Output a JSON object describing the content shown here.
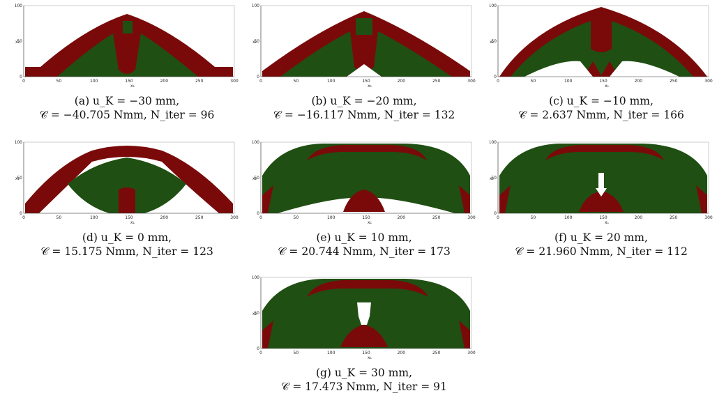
{
  "figure": {
    "axes": {
      "x_label": "x₁",
      "y_label": "x₂",
      "x_ticks": [
        "0",
        "50",
        "100",
        "150",
        "200",
        "250",
        "300"
      ],
      "y_ticks": [
        "0",
        "50",
        "100"
      ]
    },
    "colors": {
      "solid_material": "#7a0a0a",
      "soft_material": "#1f4f12",
      "void": "#ffffff"
    },
    "panels": [
      {
        "id": "a",
        "caption_line1": "(a) u_K = −30 mm,",
        "caption_line2": "𝒞 = −40.705 Nmm, N_iter = 96"
      },
      {
        "id": "b",
        "caption_line1": "(b)  u_K = −20 mm,",
        "caption_line2": "𝒞 = −16.117 Nmm, N_iter = 132"
      },
      {
        "id": "c",
        "caption_line1": "(c)  u_K = −10 mm,",
        "caption_line2": "𝒞 = 2.637 Nmm, N_iter = 166"
      },
      {
        "id": "d",
        "caption_line1": "(d)  u_K = 0 mm,",
        "caption_line2": "𝒞 = 15.175 Nmm, N_iter = 123"
      },
      {
        "id": "e",
        "caption_line1": "(e)  u_K = 10 mm,",
        "caption_line2": "𝒞 = 20.744 Nmm, N_iter = 173"
      },
      {
        "id": "f",
        "caption_line1": "(f)  u_K = 20 mm,",
        "caption_line2": "𝒞 = 21.960 Nmm, N_iter = 112"
      },
      {
        "id": "g",
        "caption_line1": "(g)  u_K = 30 mm,",
        "caption_line2": "𝒞 = 17.473 Nmm, N_iter = 91"
      }
    ]
  }
}
